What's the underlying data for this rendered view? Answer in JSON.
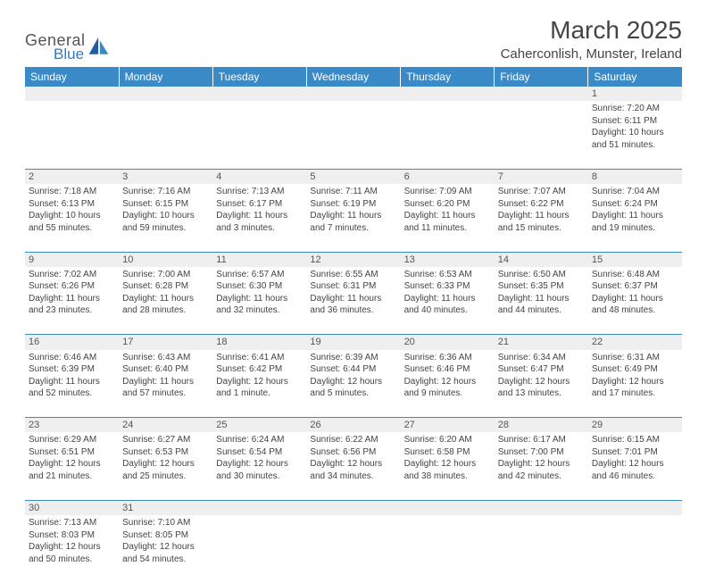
{
  "logo": {
    "general": "General",
    "blue": "Blue"
  },
  "title": "March 2025",
  "location": "Caherconlish, Munster, Ireland",
  "colors": {
    "header_bg": "#3a8ac8",
    "daynum_bg": "#efefef",
    "text": "#444444",
    "border": "#3a8ac8"
  },
  "weekdays": [
    "Sunday",
    "Monday",
    "Tuesday",
    "Wednesday",
    "Thursday",
    "Friday",
    "Saturday"
  ],
  "weeks": [
    {
      "nums": [
        "",
        "",
        "",
        "",
        "",
        "",
        "1"
      ],
      "days": [
        null,
        null,
        null,
        null,
        null,
        null,
        {
          "sunrise": "Sunrise: 7:20 AM",
          "sunset": "Sunset: 6:11 PM",
          "daylight": "Daylight: 10 hours and 51 minutes."
        }
      ]
    },
    {
      "nums": [
        "2",
        "3",
        "4",
        "5",
        "6",
        "7",
        "8"
      ],
      "days": [
        {
          "sunrise": "Sunrise: 7:18 AM",
          "sunset": "Sunset: 6:13 PM",
          "daylight": "Daylight: 10 hours and 55 minutes."
        },
        {
          "sunrise": "Sunrise: 7:16 AM",
          "sunset": "Sunset: 6:15 PM",
          "daylight": "Daylight: 10 hours and 59 minutes."
        },
        {
          "sunrise": "Sunrise: 7:13 AM",
          "sunset": "Sunset: 6:17 PM",
          "daylight": "Daylight: 11 hours and 3 minutes."
        },
        {
          "sunrise": "Sunrise: 7:11 AM",
          "sunset": "Sunset: 6:19 PM",
          "daylight": "Daylight: 11 hours and 7 minutes."
        },
        {
          "sunrise": "Sunrise: 7:09 AM",
          "sunset": "Sunset: 6:20 PM",
          "daylight": "Daylight: 11 hours and 11 minutes."
        },
        {
          "sunrise": "Sunrise: 7:07 AM",
          "sunset": "Sunset: 6:22 PM",
          "daylight": "Daylight: 11 hours and 15 minutes."
        },
        {
          "sunrise": "Sunrise: 7:04 AM",
          "sunset": "Sunset: 6:24 PM",
          "daylight": "Daylight: 11 hours and 19 minutes."
        }
      ]
    },
    {
      "nums": [
        "9",
        "10",
        "11",
        "12",
        "13",
        "14",
        "15"
      ],
      "days": [
        {
          "sunrise": "Sunrise: 7:02 AM",
          "sunset": "Sunset: 6:26 PM",
          "daylight": "Daylight: 11 hours and 23 minutes."
        },
        {
          "sunrise": "Sunrise: 7:00 AM",
          "sunset": "Sunset: 6:28 PM",
          "daylight": "Daylight: 11 hours and 28 minutes."
        },
        {
          "sunrise": "Sunrise: 6:57 AM",
          "sunset": "Sunset: 6:30 PM",
          "daylight": "Daylight: 11 hours and 32 minutes."
        },
        {
          "sunrise": "Sunrise: 6:55 AM",
          "sunset": "Sunset: 6:31 PM",
          "daylight": "Daylight: 11 hours and 36 minutes."
        },
        {
          "sunrise": "Sunrise: 6:53 AM",
          "sunset": "Sunset: 6:33 PM",
          "daylight": "Daylight: 11 hours and 40 minutes."
        },
        {
          "sunrise": "Sunrise: 6:50 AM",
          "sunset": "Sunset: 6:35 PM",
          "daylight": "Daylight: 11 hours and 44 minutes."
        },
        {
          "sunrise": "Sunrise: 6:48 AM",
          "sunset": "Sunset: 6:37 PM",
          "daylight": "Daylight: 11 hours and 48 minutes."
        }
      ]
    },
    {
      "nums": [
        "16",
        "17",
        "18",
        "19",
        "20",
        "21",
        "22"
      ],
      "days": [
        {
          "sunrise": "Sunrise: 6:46 AM",
          "sunset": "Sunset: 6:39 PM",
          "daylight": "Daylight: 11 hours and 52 minutes."
        },
        {
          "sunrise": "Sunrise: 6:43 AM",
          "sunset": "Sunset: 6:40 PM",
          "daylight": "Daylight: 11 hours and 57 minutes."
        },
        {
          "sunrise": "Sunrise: 6:41 AM",
          "sunset": "Sunset: 6:42 PM",
          "daylight": "Daylight: 12 hours and 1 minute."
        },
        {
          "sunrise": "Sunrise: 6:39 AM",
          "sunset": "Sunset: 6:44 PM",
          "daylight": "Daylight: 12 hours and 5 minutes."
        },
        {
          "sunrise": "Sunrise: 6:36 AM",
          "sunset": "Sunset: 6:46 PM",
          "daylight": "Daylight: 12 hours and 9 minutes."
        },
        {
          "sunrise": "Sunrise: 6:34 AM",
          "sunset": "Sunset: 6:47 PM",
          "daylight": "Daylight: 12 hours and 13 minutes."
        },
        {
          "sunrise": "Sunrise: 6:31 AM",
          "sunset": "Sunset: 6:49 PM",
          "daylight": "Daylight: 12 hours and 17 minutes."
        }
      ]
    },
    {
      "nums": [
        "23",
        "24",
        "25",
        "26",
        "27",
        "28",
        "29"
      ],
      "days": [
        {
          "sunrise": "Sunrise: 6:29 AM",
          "sunset": "Sunset: 6:51 PM",
          "daylight": "Daylight: 12 hours and 21 minutes."
        },
        {
          "sunrise": "Sunrise: 6:27 AM",
          "sunset": "Sunset: 6:53 PM",
          "daylight": "Daylight: 12 hours and 25 minutes."
        },
        {
          "sunrise": "Sunrise: 6:24 AM",
          "sunset": "Sunset: 6:54 PM",
          "daylight": "Daylight: 12 hours and 30 minutes."
        },
        {
          "sunrise": "Sunrise: 6:22 AM",
          "sunset": "Sunset: 6:56 PM",
          "daylight": "Daylight: 12 hours and 34 minutes."
        },
        {
          "sunrise": "Sunrise: 6:20 AM",
          "sunset": "Sunset: 6:58 PM",
          "daylight": "Daylight: 12 hours and 38 minutes."
        },
        {
          "sunrise": "Sunrise: 6:17 AM",
          "sunset": "Sunset: 7:00 PM",
          "daylight": "Daylight: 12 hours and 42 minutes."
        },
        {
          "sunrise": "Sunrise: 6:15 AM",
          "sunset": "Sunset: 7:01 PM",
          "daylight": "Daylight: 12 hours and 46 minutes."
        }
      ]
    },
    {
      "nums": [
        "30",
        "31",
        "",
        "",
        "",
        "",
        ""
      ],
      "days": [
        {
          "sunrise": "Sunrise: 7:13 AM",
          "sunset": "Sunset: 8:03 PM",
          "daylight": "Daylight: 12 hours and 50 minutes."
        },
        {
          "sunrise": "Sunrise: 7:10 AM",
          "sunset": "Sunset: 8:05 PM",
          "daylight": "Daylight: 12 hours and 54 minutes."
        },
        null,
        null,
        null,
        null,
        null
      ]
    }
  ]
}
